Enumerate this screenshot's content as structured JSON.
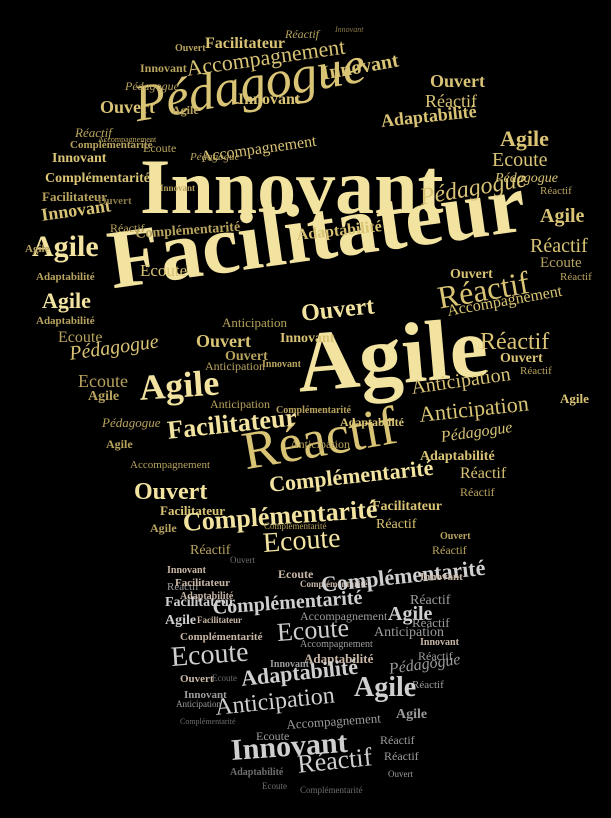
{
  "image": {
    "background": "#000000",
    "shape": "light bulb word cloud",
    "top_color": "#f2e3a0",
    "bottom_color": "#9c9c9c"
  },
  "words": {
    "innovant": "Innovant",
    "facilitateur": "Facilitateur",
    "agile": "Agile",
    "pedagogue": "Pédagogue",
    "reactif": "Réactif",
    "ouvert": "Ouvert",
    "accompagnement": "Accompagnement",
    "adaptabilite": "Adaptabilité",
    "complementarite": "Complémentarité",
    "ecoute": "Ecoute",
    "anticipation": "Anticipation"
  }
}
